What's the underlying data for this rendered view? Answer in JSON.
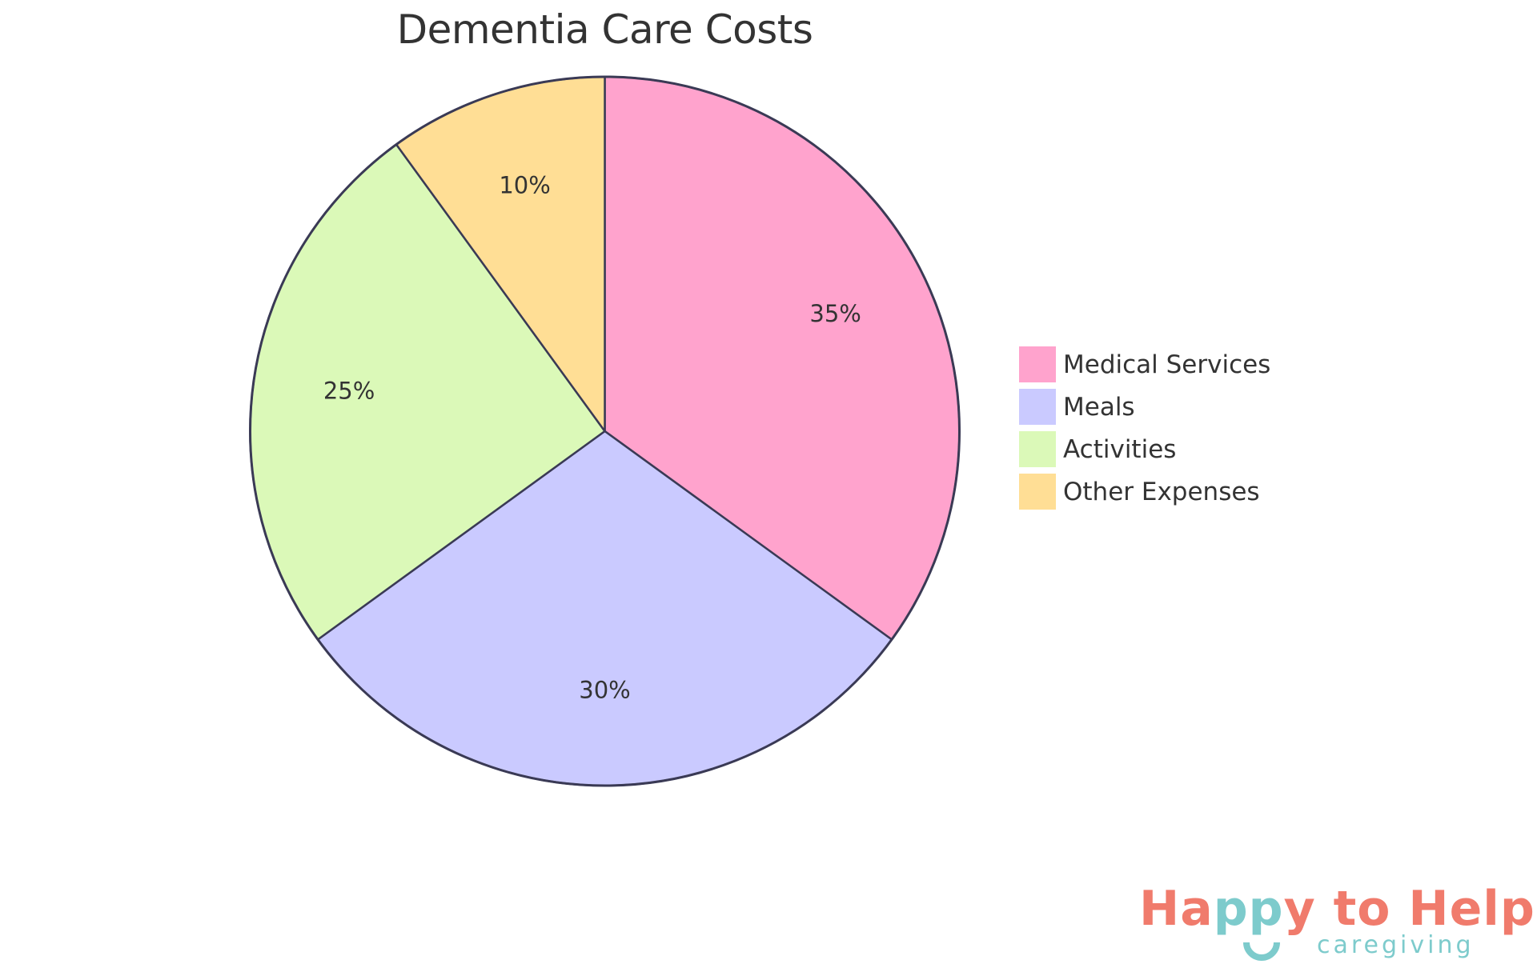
{
  "chart_data": {
    "type": "pie",
    "title": "Dementia Care Costs",
    "categories": [
      "Medical Services",
      "Meals",
      "Activities",
      "Other Expenses"
    ],
    "values": [
      35,
      30,
      25,
      10
    ],
    "labels": [
      "35%",
      "30%",
      "25%",
      "10%"
    ],
    "colors": [
      "#FFA3CD",
      "#CACAFF",
      "#DBF9B8",
      "#FFDE95"
    ],
    "stroke_color": "#3A3A55",
    "start_angle_deg": 0,
    "direction": "clockwise",
    "legend_position": "right"
  },
  "title": "Dementia Care Costs",
  "legend": {
    "items": [
      {
        "label": "Medical Services",
        "color": "#FFA3CD"
      },
      {
        "label": "Meals",
        "color": "#CACAFF"
      },
      {
        "label": "Activities",
        "color": "#DBF9B8"
      },
      {
        "label": "Other Expenses",
        "color": "#FFDE95"
      }
    ]
  },
  "logo": {
    "part1": "Ha",
    "part2": "pp",
    "part3": "y to Help",
    "subtitle": "caregiving",
    "primary_color": "#F07B6C",
    "accent_color": "#7DCBCC"
  }
}
